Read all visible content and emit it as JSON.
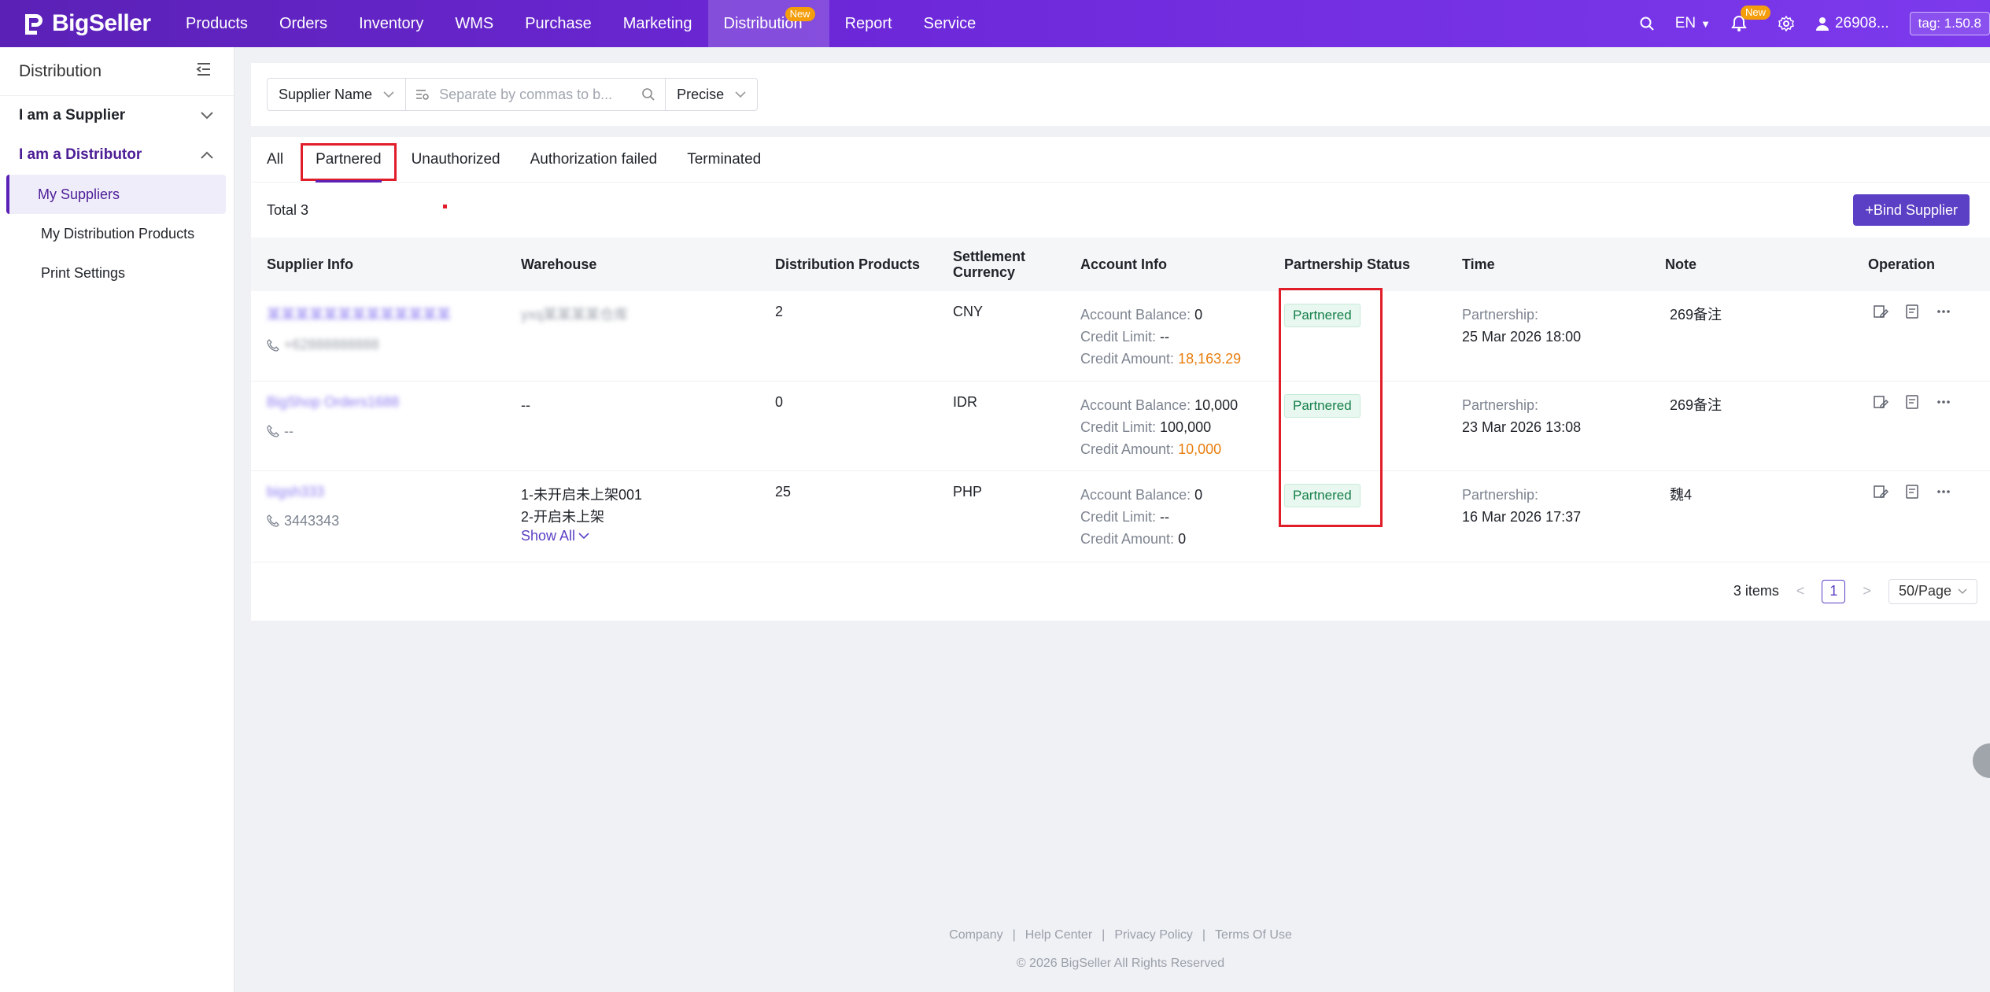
{
  "app": {
    "logo_text": "BigSeller"
  },
  "nav": [
    {
      "label": "Products"
    },
    {
      "label": "Orders"
    },
    {
      "label": "Inventory"
    },
    {
      "label": "WMS"
    },
    {
      "label": "Purchase"
    },
    {
      "label": "Marketing"
    },
    {
      "label": "Distribution",
      "badge": "New",
      "active": true
    },
    {
      "label": "Report"
    },
    {
      "label": "Service"
    }
  ],
  "topright": {
    "language": "EN",
    "notif_badge": "New",
    "user": "26908...",
    "tag": "tag: 1.50.8"
  },
  "sidebar": {
    "title": "Distribution",
    "group_supplier": "I am a Supplier",
    "group_distributor": "I am a Distributor",
    "items": [
      {
        "label": "My Suppliers",
        "active": true
      },
      {
        "label": "My Distribution Products"
      },
      {
        "label": "Print Settings"
      }
    ]
  },
  "filter": {
    "field_select": "Supplier Name",
    "search_placeholder": "Separate by commas to b...",
    "match_select": "Precise"
  },
  "tabs": [
    {
      "label": "All"
    },
    {
      "label": "Partnered",
      "active": true
    },
    {
      "label": "Unauthorized"
    },
    {
      "label": "Authorization failed"
    },
    {
      "label": "Terminated"
    }
  ],
  "total_label": "Total 3",
  "bind_button": "+Bind Supplier",
  "table": {
    "headers": {
      "supplier": "Supplier Info",
      "warehouse": "Warehouse",
      "products": "Distribution Products",
      "currency_1": "Settlement",
      "currency_2": "Currency",
      "account": "Account Info",
      "status": "Partnership Status",
      "time": "Time",
      "note": "Note",
      "operation": "Operation"
    },
    "labels": {
      "balance": "Account Balance: ",
      "limit": "Credit Limit: ",
      "amount": "Credit Amount: ",
      "partnership": "Partnership:",
      "show_all": "Show All"
    },
    "rows": [
      {
        "supplier_name": "某某某某某某某某某某某某某",
        "phone": "+62888888888",
        "warehouse_1": "yxq某某某某仓库",
        "warehouse_2": "",
        "products": "2",
        "currency": "CNY",
        "balance": "0",
        "limit": "--",
        "amount": "18,163.29",
        "amount_highlight": true,
        "status": "Partnered",
        "time": "25 Mar 2026 18:00",
        "note": "269备注"
      },
      {
        "supplier_name": "BigShop Orders1688",
        "phone": "--",
        "warehouse_1": "--",
        "warehouse_2": "",
        "products": "0",
        "currency": "IDR",
        "balance": "10,000",
        "limit": "100,000",
        "amount": "10,000",
        "amount_highlight": true,
        "status": "Partnered",
        "time": "23 Mar 2026 13:08",
        "note": "269备注"
      },
      {
        "supplier_name": "bigsh333",
        "phone": "3443343",
        "warehouse_1": "1-未开启未上架001",
        "warehouse_2": "2-开启未上架",
        "products": "25",
        "currency": "PHP",
        "balance": "0",
        "limit": "--",
        "amount": "0",
        "amount_highlight": false,
        "status": "Partnered",
        "time": "16 Mar 2026 17:37",
        "note": "魏4"
      }
    ]
  },
  "pagination": {
    "items_label": "3 items",
    "current_page": "1",
    "page_size": "50/Page"
  },
  "footer": {
    "links": [
      "Company",
      "Help Center",
      "Privacy Policy",
      "Terms Of Use"
    ],
    "copyright": "© 2026 BigSeller All Rights Reserved"
  }
}
